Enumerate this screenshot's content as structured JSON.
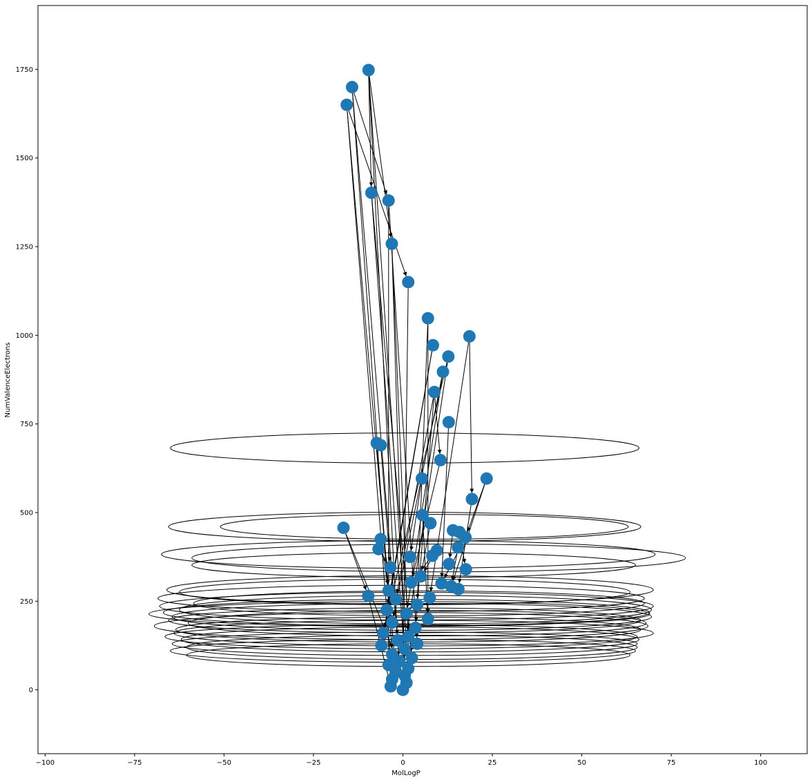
{
  "chart_data": {
    "type": "scatter",
    "subtype": "network-graph",
    "xlabel": "MolLogP",
    "ylabel": "NumValenceElectrons",
    "xlim": [
      -102,
      113
    ],
    "ylim": [
      -180,
      1930
    ],
    "xticks": [
      -100,
      -75,
      -50,
      -25,
      0,
      25,
      50,
      75,
      100
    ],
    "yticks": [
      0,
      250,
      500,
      750,
      1000,
      1250,
      1500,
      1750
    ],
    "xtick_labels": [
      "−100",
      "−75",
      "−50",
      "−25",
      "0",
      "25",
      "50",
      "75",
      "100"
    ],
    "ytick_labels": [
      "0",
      "250",
      "500",
      "750",
      "1000",
      "1250",
      "1500",
      "1750"
    ],
    "grid": false,
    "node_color": "#1f77b4",
    "edge_color": "#000000",
    "nodes": [
      {
        "x": -9.6,
        "y": 1748
      },
      {
        "x": -14.2,
        "y": 1700
      },
      {
        "x": -15.7,
        "y": 1650
      },
      {
        "x": -8.8,
        "y": 1402
      },
      {
        "x": -4.0,
        "y": 1380
      },
      {
        "x": -3.1,
        "y": 1258
      },
      {
        "x": 1.5,
        "y": 1150
      },
      {
        "x": 7.0,
        "y": 1048
      },
      {
        "x": 18.6,
        "y": 997
      },
      {
        "x": 8.4,
        "y": 972
      },
      {
        "x": 12.7,
        "y": 940
      },
      {
        "x": 11.2,
        "y": 897
      },
      {
        "x": 8.8,
        "y": 840
      },
      {
        "x": 12.8,
        "y": 755
      },
      {
        "x": -7.3,
        "y": 696
      },
      {
        "x": -6.2,
        "y": 690
      },
      {
        "x": 10.5,
        "y": 648
      },
      {
        "x": 5.3,
        "y": 596
      },
      {
        "x": 23.4,
        "y": 596
      },
      {
        "x": 19.3,
        "y": 538
      },
      {
        "x": 5.5,
        "y": 493
      },
      {
        "x": 7.7,
        "y": 470
      },
      {
        "x": -16.6,
        "y": 457
      },
      {
        "x": 14.0,
        "y": 450
      },
      {
        "x": 15.8,
        "y": 445
      },
      {
        "x": 17.5,
        "y": 430
      },
      {
        "x": -6.2,
        "y": 425
      },
      {
        "x": 15.4,
        "y": 402
      },
      {
        "x": -6.8,
        "y": 397
      },
      {
        "x": 9.5,
        "y": 393
      },
      {
        "x": 8.2,
        "y": 378
      },
      {
        "x": 2.0,
        "y": 375
      },
      {
        "x": 12.9,
        "y": 355
      },
      {
        "x": -3.5,
        "y": 345
      },
      {
        "x": 17.6,
        "y": 340
      },
      {
        "x": 5.0,
        "y": 320
      },
      {
        "x": 2.3,
        "y": 303
      },
      {
        "x": 10.8,
        "y": 300
      },
      {
        "x": 13.5,
        "y": 292
      },
      {
        "x": 15.5,
        "y": 284
      },
      {
        "x": -4.0,
        "y": 280
      },
      {
        "x": -9.7,
        "y": 265
      },
      {
        "x": 7.5,
        "y": 260
      },
      {
        "x": -2.0,
        "y": 255
      },
      {
        "x": 4.0,
        "y": 240
      },
      {
        "x": -4.5,
        "y": 225
      },
      {
        "x": 1.0,
        "y": 215
      },
      {
        "x": 7.0,
        "y": 200
      },
      {
        "x": -3.0,
        "y": 190
      },
      {
        "x": 3.5,
        "y": 175
      },
      {
        "x": -5.5,
        "y": 160
      },
      {
        "x": 1.5,
        "y": 150
      },
      {
        "x": -1.5,
        "y": 140
      },
      {
        "x": 4.0,
        "y": 130
      },
      {
        "x": -6.0,
        "y": 125
      },
      {
        "x": 0.5,
        "y": 115
      },
      {
        "x": -3.0,
        "y": 100
      },
      {
        "x": 2.5,
        "y": 90
      },
      {
        "x": -1.0,
        "y": 80
      },
      {
        "x": -4.0,
        "y": 70
      },
      {
        "x": 1.5,
        "y": 60
      },
      {
        "x": -2.0,
        "y": 50
      },
      {
        "x": 0.5,
        "y": 40
      },
      {
        "x": -3.0,
        "y": 30
      },
      {
        "x": 1.0,
        "y": 20
      },
      {
        "x": -3.4,
        "y": 10
      },
      {
        "x": 0.0,
        "y": 0
      }
    ],
    "self_loops": [
      {
        "x": 0.5,
        "y": 682,
        "rx": 65.5,
        "ry": 85
      },
      {
        "x": 0.5,
        "y": 460,
        "rx": 66,
        "ry": 82
      },
      {
        "x": 6.0,
        "y": 460,
        "rx": 57,
        "ry": 70
      },
      {
        "x": 10.0,
        "y": 372,
        "rx": 69,
        "ry": 78
      },
      {
        "x": 1.5,
        "y": 382,
        "rx": 69,
        "ry": 78
      },
      {
        "x": 3.0,
        "y": 352,
        "rx": 62,
        "ry": 70
      },
      {
        "x": 2.0,
        "y": 282,
        "rx": 68,
        "ry": 80
      },
      {
        "x": 0.5,
        "y": 276,
        "rx": 63,
        "ry": 72
      },
      {
        "x": 3.5,
        "y": 226,
        "rx": 66,
        "ry": 80
      },
      {
        "x": 1.0,
        "y": 218,
        "rx": 68,
        "ry": 74
      },
      {
        "x": -1.0,
        "y": 214,
        "rx": 70,
        "ry": 70
      },
      {
        "x": 2.5,
        "y": 206,
        "rx": 67,
        "ry": 76
      },
      {
        "x": 0.5,
        "y": 196,
        "rx": 66,
        "ry": 70
      },
      {
        "x": 4.0,
        "y": 188,
        "rx": 64,
        "ry": 72
      },
      {
        "x": -0.5,
        "y": 180,
        "rx": 69,
        "ry": 76
      },
      {
        "x": 1.5,
        "y": 170,
        "rx": 65,
        "ry": 70
      },
      {
        "x": 3.0,
        "y": 160,
        "rx": 67,
        "ry": 72
      },
      {
        "x": -0.5,
        "y": 150,
        "rx": 66,
        "ry": 68
      },
      {
        "x": 2.0,
        "y": 142,
        "rx": 64,
        "ry": 70
      },
      {
        "x": 0.5,
        "y": 130,
        "rx": 65,
        "ry": 66
      },
      {
        "x": 2.5,
        "y": 120,
        "rx": 63,
        "ry": 68
      },
      {
        "x": 0.0,
        "y": 110,
        "rx": 65,
        "ry": 64
      },
      {
        "x": 1.5,
        "y": 98,
        "rx": 62,
        "ry": 64
      },
      {
        "x": -0.5,
        "y": 258,
        "rx": 68,
        "ry": 74
      },
      {
        "x": 4.5,
        "y": 244,
        "rx": 63,
        "ry": 70
      },
      {
        "x": 1.0,
        "y": 236,
        "rx": 69,
        "ry": 78
      }
    ],
    "edges": [
      [
        0,
        52
      ],
      [
        0,
        60
      ],
      [
        0,
        5
      ],
      [
        1,
        56
      ],
      [
        1,
        58
      ],
      [
        2,
        63
      ],
      [
        2,
        61
      ],
      [
        3,
        57
      ],
      [
        3,
        64
      ],
      [
        4,
        59
      ],
      [
        4,
        53
      ],
      [
        5,
        62
      ],
      [
        5,
        51
      ],
      [
        6,
        66
      ],
      [
        7,
        47
      ],
      [
        7,
        44
      ],
      [
        8,
        42
      ],
      [
        9,
        45
      ],
      [
        9,
        54
      ],
      [
        10,
        50
      ],
      [
        10,
        55
      ],
      [
        11,
        48
      ],
      [
        11,
        46
      ],
      [
        12,
        49
      ],
      [
        12,
        43
      ],
      [
        13,
        37
      ],
      [
        14,
        40
      ],
      [
        15,
        33
      ],
      [
        16,
        36
      ],
      [
        17,
        31
      ],
      [
        18,
        38
      ],
      [
        19,
        39
      ],
      [
        20,
        47
      ],
      [
        21,
        35
      ],
      [
        22,
        41
      ],
      [
        23,
        32
      ],
      [
        24,
        34
      ],
      [
        25,
        37
      ],
      [
        26,
        40
      ],
      [
        27,
        38
      ],
      [
        28,
        33
      ],
      [
        29,
        35
      ],
      [
        30,
        36
      ],
      [
        0,
        3
      ],
      [
        1,
        4
      ],
      [
        2,
        6
      ],
      [
        8,
        19
      ],
      [
        18,
        25
      ],
      [
        12,
        16
      ],
      [
        22,
        64
      ],
      [
        41,
        65
      ]
    ]
  }
}
